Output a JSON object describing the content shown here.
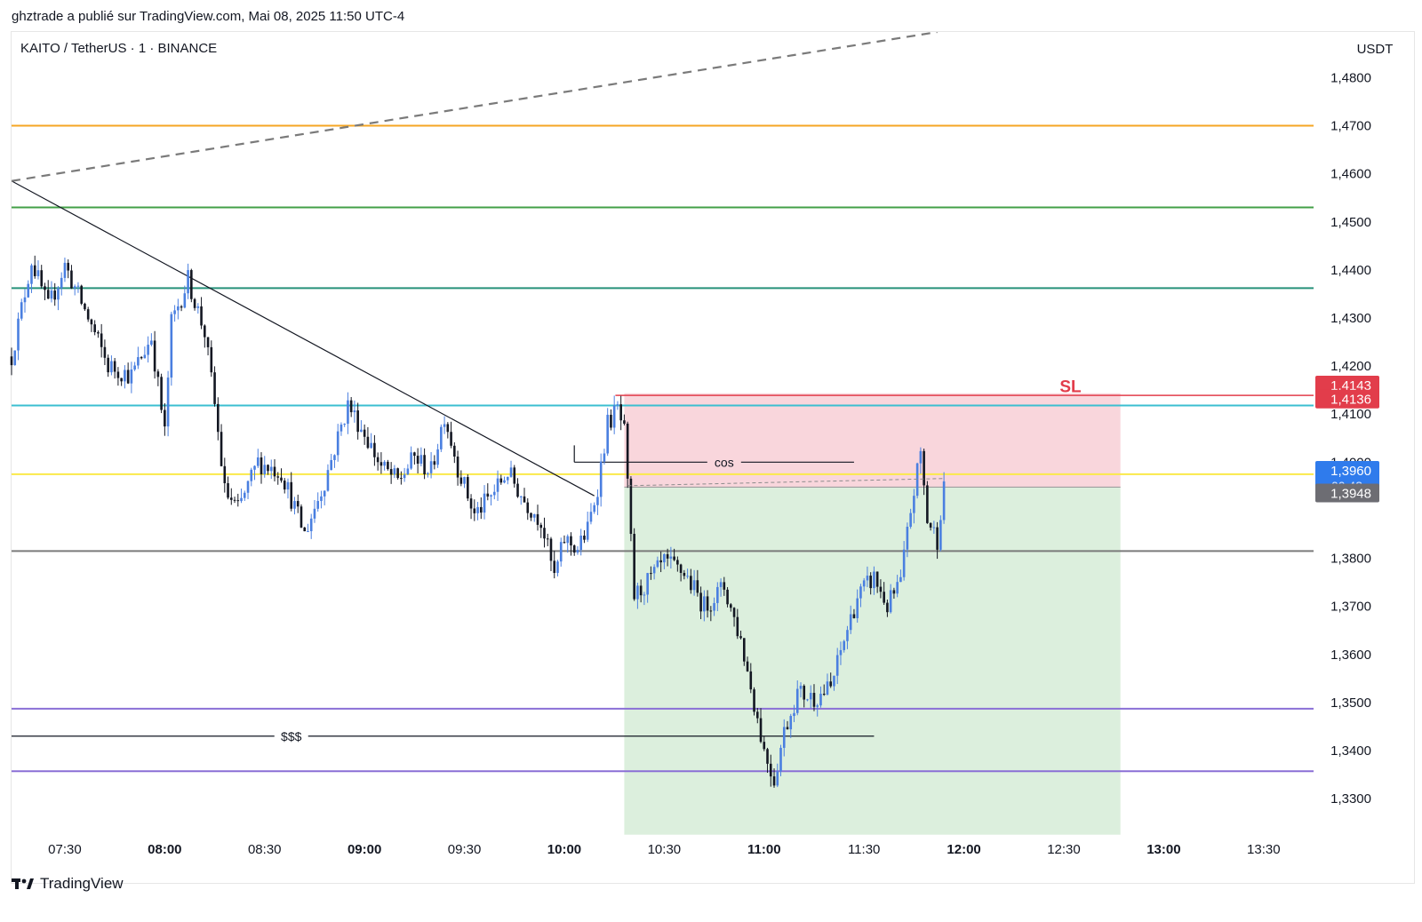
{
  "header": {
    "published": "ghztrade a publié sur TradingView.com, Mai 08, 2025 11:50 UTC-4"
  },
  "chart_title": "KAITO / TetherUS · 1 · BINANCE",
  "currency": "USDT",
  "footer": {
    "brand": "TradingView"
  },
  "colors": {
    "up": "#4a7fe0",
    "down": "#131722",
    "orange": "#f5a623",
    "green": "#43a047",
    "teal": "#26917a",
    "cyan": "#3bbfd0",
    "yellow": "#fbe94a",
    "gray": "#7a7a7a",
    "purple": "#8a6fd6",
    "sl": "#e23d4b",
    "stop_zone": "#f9d6dc",
    "target_zone": "#dcefdd",
    "price_badge": "#2f7bec",
    "entry_badge": "#6d6d73"
  },
  "chart_data": {
    "type": "candlestick",
    "symbol": "KAITO / TetherUS",
    "interval": "1",
    "exchange": "BINANCE",
    "y_axis": {
      "label": "USDT",
      "ticks": [
        "1,4800",
        "1,4700",
        "1,4600",
        "1,4500",
        "1,4400",
        "1,4300",
        "1,4200",
        "1,4100",
        "1,4000",
        "1,3900",
        "1,3800",
        "1,3700",
        "1,3600",
        "1,3500",
        "1,3400",
        "1,3300"
      ],
      "range": [
        1.323,
        1.4895
      ]
    },
    "x_axis": {
      "ticks": [
        {
          "label": "07:30",
          "t": "07:30",
          "bold": false
        },
        {
          "label": "08:00",
          "t": "08:00",
          "bold": true
        },
        {
          "label": "08:30",
          "t": "08:30",
          "bold": false
        },
        {
          "label": "09:00",
          "t": "09:00",
          "bold": true
        },
        {
          "label": "09:30",
          "t": "09:30",
          "bold": false
        },
        {
          "label": "10:00",
          "t": "10:00",
          "bold": true
        },
        {
          "label": "10:30",
          "t": "10:30",
          "bold": false
        },
        {
          "label": "11:00",
          "t": "11:00",
          "bold": true
        },
        {
          "label": "11:30",
          "t": "11:30",
          "bold": false
        },
        {
          "label": "12:00",
          "t": "12:00",
          "bold": true
        },
        {
          "label": "12:30",
          "t": "12:30",
          "bold": false
        },
        {
          "label": "13:00",
          "t": "13:00",
          "bold": true
        },
        {
          "label": "13:30",
          "t": "13:30",
          "bold": false
        }
      ],
      "range": [
        "07:14",
        "13:45"
      ]
    },
    "horizontal_levels": [
      {
        "price": 1.47,
        "color": "orange"
      },
      {
        "price": 1.453,
        "color": "green"
      },
      {
        "price": 1.4362,
        "color": "teal"
      },
      {
        "price": 1.4118,
        "color": "cyan"
      },
      {
        "price": 1.3975,
        "color": "yellow"
      },
      {
        "price": 1.3815,
        "color": "gray"
      },
      {
        "price": 1.3487,
        "color": "purple"
      },
      {
        "price": 1.3357,
        "color": "purple"
      }
    ],
    "price_labels": [
      {
        "value": "1,4143",
        "price": 1.4143,
        "color": "sl"
      },
      {
        "value": "1,4136",
        "price": 1.4136,
        "color": "sl"
      },
      {
        "value": "1,3960",
        "price": 1.396,
        "color": "price_badge",
        "countdown": "00:43"
      },
      {
        "value": "1,3948",
        "price": 1.3948,
        "color": "entry_badge"
      }
    ],
    "annotations": [
      {
        "text": "SL",
        "t": "12:32",
        "price": 1.4146
      },
      {
        "text": "cos",
        "t": "10:48",
        "price": 1.4,
        "line_from": "10:03",
        "line_to": "11:27"
      },
      {
        "text": "$$$",
        "t": "08:38",
        "price": 1.343,
        "line_from": "07:14",
        "line_to": "11:33"
      }
    ],
    "position": {
      "type": "short",
      "start": "10:18",
      "end": "12:47",
      "stop": 1.4136,
      "entry": 1.3948,
      "target": 1.3225
    },
    "trendlines": [
      {
        "style": "solid",
        "from": {
          "t": "07:14",
          "price": 1.4585
        },
        "to": {
          "t": "10:09",
          "price": 1.393
        }
      },
      {
        "style": "dashed",
        "from": {
          "t": "07:14",
          "price": 1.4585
        },
        "to": {
          "t": "11:52",
          "price": 1.4895
        }
      }
    ],
    "close_path": [
      {
        "t": "07:14",
        "price": 1.422
      },
      {
        "t": "07:20",
        "price": 1.442
      },
      {
        "t": "07:25",
        "price": 1.432
      },
      {
        "t": "07:30",
        "price": 1.441
      },
      {
        "t": "07:37",
        "price": 1.43
      },
      {
        "t": "07:43",
        "price": 1.42
      },
      {
        "t": "07:50",
        "price": 1.418
      },
      {
        "t": "07:56",
        "price": 1.426
      },
      {
        "t": "08:00",
        "price": 1.406
      },
      {
        "t": "08:02",
        "price": 1.429
      },
      {
        "t": "08:07",
        "price": 1.438
      },
      {
        "t": "08:12",
        "price": 1.427
      },
      {
        "t": "08:15",
        "price": 1.412
      },
      {
        "t": "08:18",
        "price": 1.394
      },
      {
        "t": "08:22",
        "price": 1.39
      },
      {
        "t": "08:28",
        "price": 1.4
      },
      {
        "t": "08:35",
        "price": 1.398
      },
      {
        "t": "08:42",
        "price": 1.385
      },
      {
        "t": "08:48",
        "price": 1.396
      },
      {
        "t": "08:55",
        "price": 1.412
      },
      {
        "t": "09:00",
        "price": 1.406
      },
      {
        "t": "09:05",
        "price": 1.399
      },
      {
        "t": "09:10",
        "price": 1.396
      },
      {
        "t": "09:15",
        "price": 1.401
      },
      {
        "t": "09:20",
        "price": 1.398
      },
      {
        "t": "09:24",
        "price": 1.41
      },
      {
        "t": "09:28",
        "price": 1.399
      },
      {
        "t": "09:33",
        "price": 1.389
      },
      {
        "t": "09:38",
        "price": 1.393
      },
      {
        "t": "09:43",
        "price": 1.398
      },
      {
        "t": "09:48",
        "price": 1.392
      },
      {
        "t": "09:53",
        "price": 1.388
      },
      {
        "t": "09:57",
        "price": 1.376
      },
      {
        "t": "10:00",
        "price": 1.384
      },
      {
        "t": "10:04",
        "price": 1.382
      },
      {
        "t": "10:07",
        "price": 1.386
      },
      {
        "t": "10:10",
        "price": 1.395
      },
      {
        "t": "10:13",
        "price": 1.408
      },
      {
        "t": "10:16",
        "price": 1.411
      },
      {
        "t": "10:18",
        "price": 1.406
      },
      {
        "t": "10:21",
        "price": 1.372
      },
      {
        "t": "10:25",
        "price": 1.375
      },
      {
        "t": "10:30",
        "price": 1.379
      },
      {
        "t": "10:36",
        "price": 1.377
      },
      {
        "t": "10:42",
        "price": 1.37
      },
      {
        "t": "10:48",
        "price": 1.374
      },
      {
        "t": "10:53",
        "price": 1.363
      },
      {
        "t": "10:57",
        "price": 1.35
      },
      {
        "t": "11:00",
        "price": 1.34
      },
      {
        "t": "11:03",
        "price": 1.334
      },
      {
        "t": "11:06",
        "price": 1.344
      },
      {
        "t": "11:10",
        "price": 1.352
      },
      {
        "t": "11:15",
        "price": 1.351
      },
      {
        "t": "11:20",
        "price": 1.353
      },
      {
        "t": "11:24",
        "price": 1.363
      },
      {
        "t": "11:28",
        "price": 1.372
      },
      {
        "t": "11:33",
        "price": 1.376
      },
      {
        "t": "11:37",
        "price": 1.37
      },
      {
        "t": "11:41",
        "price": 1.375
      },
      {
        "t": "11:44",
        "price": 1.39
      },
      {
        "t": "11:47",
        "price": 1.402
      },
      {
        "t": "11:49",
        "price": 1.388
      },
      {
        "t": "11:52",
        "price": 1.384
      },
      {
        "t": "11:54",
        "price": 1.396
      }
    ]
  }
}
